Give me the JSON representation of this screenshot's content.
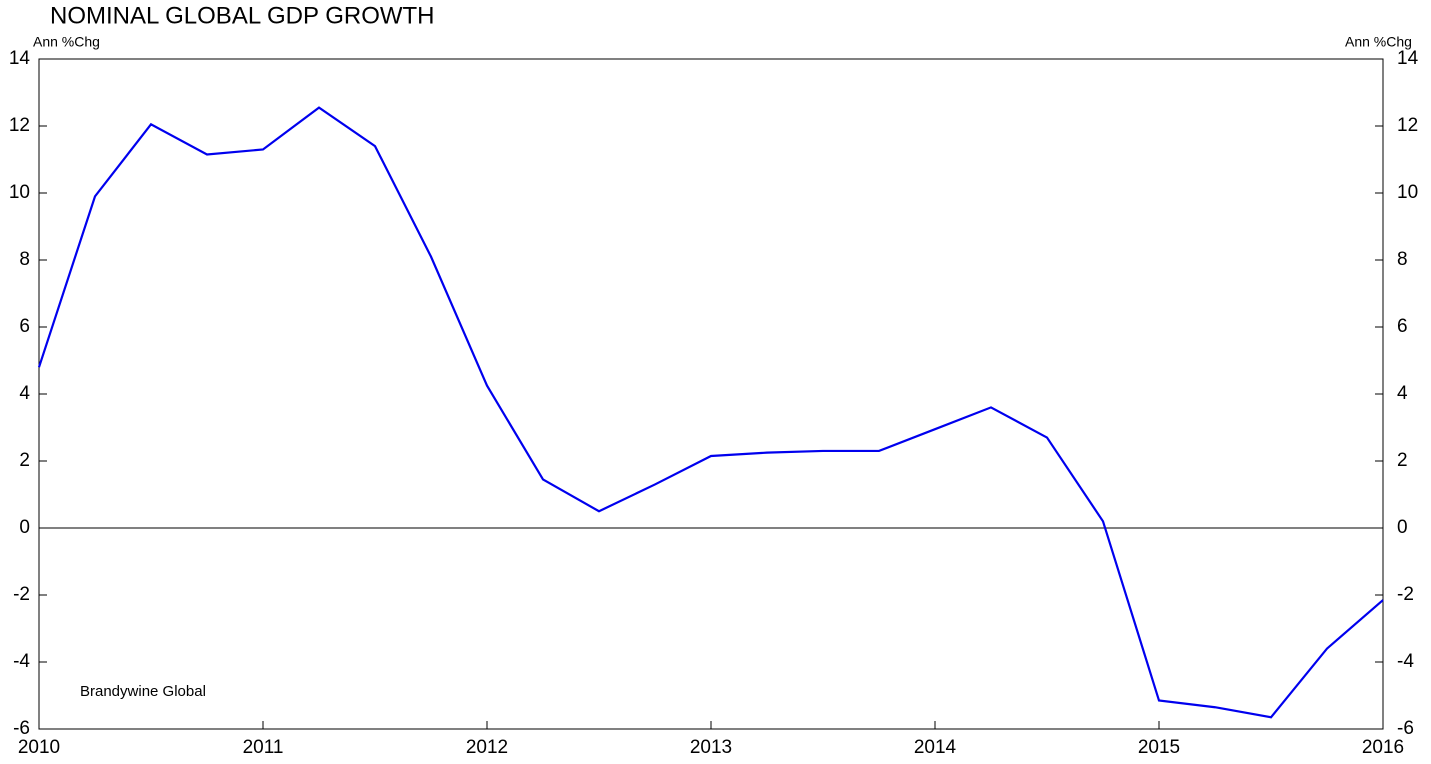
{
  "chart_data": {
    "type": "line",
    "title": "NOMINAL GLOBAL GDP GROWTH",
    "y_label": "Ann %Chg",
    "y2_label": "Ann %Chg",
    "annotation": "Brandywine Global",
    "x": [
      2010,
      2010.25,
      2010.5,
      2010.75,
      2011,
      2011.25,
      2011.5,
      2011.75,
      2012,
      2012.25,
      2012.5,
      2012.75,
      2013,
      2013.25,
      2013.5,
      2013.75,
      2014,
      2014.25,
      2014.5,
      2014.75,
      2015,
      2015.25,
      2015.5,
      2015.75,
      2016
    ],
    "series": [
      {
        "name": "Nominal Global GDP Growth",
        "color": "#0000ee",
        "values": [
          4.8,
          9.9,
          12.05,
          11.15,
          11.3,
          12.55,
          11.4,
          8.1,
          4.25,
          1.45,
          0.5,
          1.3,
          2.15,
          2.25,
          2.3,
          2.3,
          2.95,
          3.6,
          2.7,
          0.2,
          -5.15,
          -5.35,
          -5.65,
          -3.6,
          -2.15
        ]
      }
    ],
    "xlim": [
      2010,
      2016
    ],
    "xticks": [
      2010,
      2011,
      2012,
      2013,
      2014,
      2015,
      2016
    ],
    "ylim": [
      -6,
      14
    ],
    "yticks": [
      -6,
      -4,
      -2,
      0,
      2,
      4,
      6,
      8,
      10,
      12,
      14
    ],
    "y2lim": [
      -6,
      14
    ],
    "y2ticks": [
      -6,
      -4,
      -2,
      0,
      2,
      4,
      6,
      8,
      10,
      12,
      14
    ]
  }
}
